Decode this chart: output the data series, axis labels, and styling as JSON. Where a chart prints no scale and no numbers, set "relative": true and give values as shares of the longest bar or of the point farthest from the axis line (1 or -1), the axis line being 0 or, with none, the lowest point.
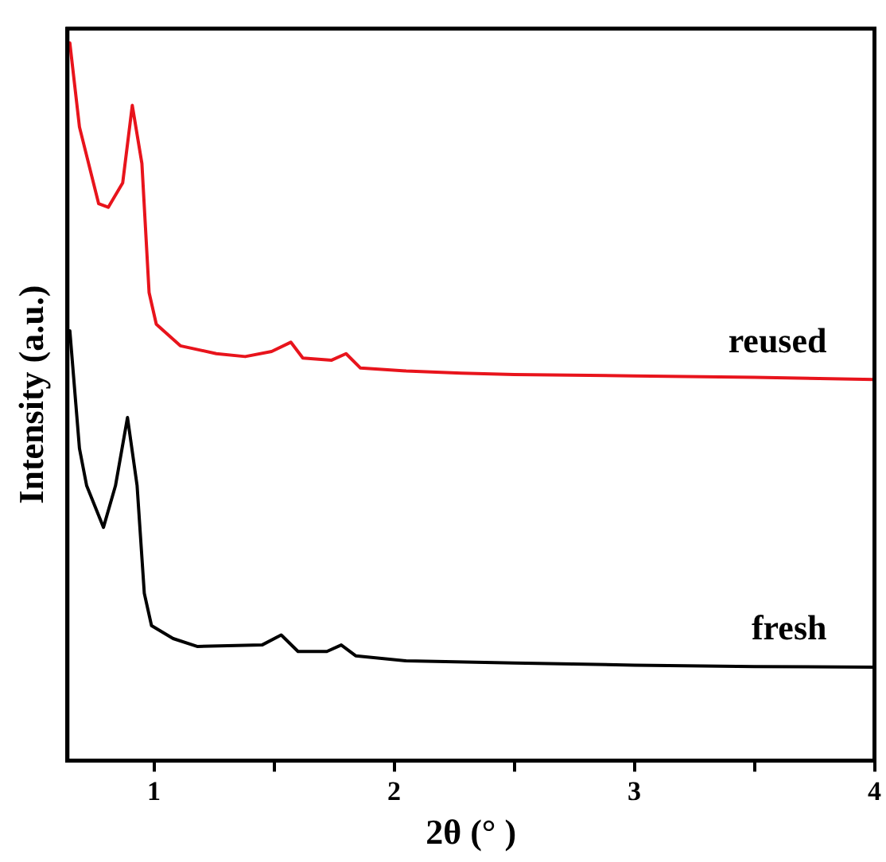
{
  "chart_data": {
    "type": "line",
    "relative": true,
    "xlabel": "2θ (° )",
    "ylabel": "Intensity (a.u.)",
    "xlim": [
      0.64,
      4
    ],
    "xticks": [
      1,
      {
        "value": 1.5,
        "label": null
      },
      2,
      {
        "value": 2.5,
        "label": null
      },
      3,
      {
        "value": 3.5,
        "label": null
      },
      4
    ],
    "grid": false,
    "legend": false,
    "marker": "none",
    "line_style": "solid",
    "tick_labels": "x",
    "series": [
      {
        "name": "reused",
        "color": "#e8141c",
        "x": [
          0.65,
          0.69,
          0.77,
          0.81,
          0.87,
          0.91,
          0.95,
          0.98,
          1.01,
          1.11,
          1.26,
          1.38,
          1.49,
          1.57,
          1.62,
          1.74,
          1.8,
          1.86,
          2.05,
          2.28,
          2.5,
          3,
          3.5,
          4
        ],
        "values": [
          1,
          0.883,
          0.776,
          0.771,
          0.805,
          0.913,
          0.832,
          0.652,
          0.608,
          0.578,
          0.567,
          0.563,
          0.57,
          0.583,
          0.561,
          0.558,
          0.567,
          0.547,
          0.543,
          0.54,
          0.538,
          0.536,
          0.534,
          0.531
        ]
      },
      {
        "name": "fresh",
        "color": "#000000",
        "x": [
          0.65,
          0.69,
          0.72,
          0.79,
          0.84,
          0.89,
          0.93,
          0.96,
          0.99,
          1.08,
          1.18,
          1.45,
          1.53,
          1.6,
          1.72,
          1.78,
          1.84,
          2.05,
          2.5,
          3,
          3.5,
          4
        ],
        "values": [
          0.599,
          0.435,
          0.383,
          0.325,
          0.383,
          0.478,
          0.383,
          0.233,
          0.188,
          0.17,
          0.159,
          0.161,
          0.175,
          0.152,
          0.152,
          0.161,
          0.146,
          0.139,
          0.136,
          0.133,
          0.131,
          0.13
        ]
      }
    ]
  }
}
